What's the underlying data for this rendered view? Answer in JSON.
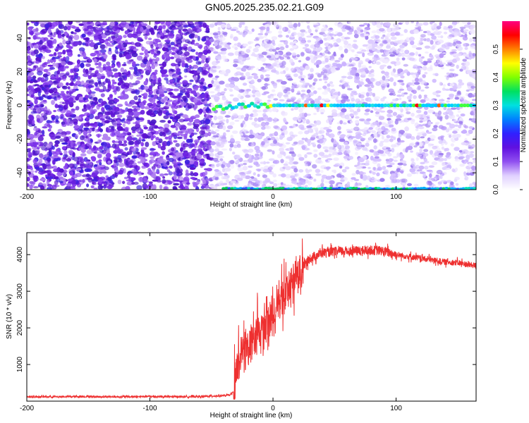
{
  "figure_title": "GN05.2025.235.02.21.G09",
  "chart_data": [
    {
      "type": "heatmap",
      "title": "GN05.2025.235.02.21.G09",
      "xlabel": "Height of straight line (km)",
      "ylabel": "Frequency (Hz)",
      "xlim": [
        -200,
        165
      ],
      "ylim": [
        -50,
        50
      ],
      "x_ticks": [
        -200,
        -100,
        0,
        100
      ],
      "x_tick_labels": [
        "-200",
        "-100",
        "0",
        "100"
      ],
      "y_ticks": [
        -40,
        -20,
        0,
        20,
        40
      ],
      "y_tick_labels": [
        "-40",
        "-20",
        "0",
        "20",
        "40"
      ],
      "colorbar": {
        "label": "Normalized spectral amplitude",
        "range": [
          0,
          0.6
        ],
        "ticks": [
          0,
          0.1,
          0.2,
          0.3,
          0.4,
          0.5
        ],
        "tick_labels": [
          "0.0",
          "0.1",
          "0.2",
          "0.3",
          "0.4",
          "0.5"
        ],
        "colors": [
          "#ffffff",
          "#e0d0ff",
          "#9050f0",
          "#6010e0",
          "#3020ff",
          "#0080ff",
          "#00e0e0",
          "#00e060",
          "#80ff00",
          "#ffff00",
          "#ff8000",
          "#ff0000",
          "#ff0080"
        ]
      },
      "features": {
        "dense_noise_region_x": [
          -200,
          -50
        ],
        "sparse_noise_region_x": [
          -50,
          165
        ],
        "signal_line_frequency_hz": 0,
        "signal_line_start_x": -48,
        "edge_band_frequency_hz": -49
      }
    },
    {
      "type": "line",
      "xlabel": "Height of straight line (km)",
      "ylabel": "SNR (10 * v/v)",
      "xlim": [
        -200,
        165
      ],
      "ylim": [
        0,
        4600
      ],
      "x_ticks": [
        -200,
        -100,
        0,
        100
      ],
      "x_tick_labels": [
        "-200",
        "-100",
        "0",
        "100"
      ],
      "y_ticks": [
        1000,
        2000,
        3000,
        4000
      ],
      "y_tick_labels": [
        "1000",
        "2000",
        "3000",
        "4000"
      ],
      "line_color": "#ee3030",
      "series": [
        {
          "x": [
            -200,
            -180,
            -160,
            -140,
            -120,
            -100,
            -80,
            -60,
            -40,
            -35,
            -32,
            -30,
            -28,
            -25,
            -20,
            -15,
            -10,
            -5,
            0,
            5,
            10,
            15,
            20,
            25,
            30,
            40,
            50,
            60,
            70,
            80,
            90,
            100,
            110,
            120,
            130,
            140,
            150,
            160,
            165
          ],
          "values": [
            120,
            120,
            125,
            120,
            120,
            125,
            120,
            125,
            150,
            170,
            250,
            700,
            1100,
            1300,
            1500,
            1700,
            1900,
            2100,
            2300,
            2700,
            2950,
            3150,
            3400,
            3700,
            3900,
            4050,
            4080,
            4100,
            4100,
            4120,
            4100,
            4000,
            3950,
            3900,
            3850,
            3800,
            3780,
            3720,
            3700
          ]
        }
      ]
    }
  ]
}
